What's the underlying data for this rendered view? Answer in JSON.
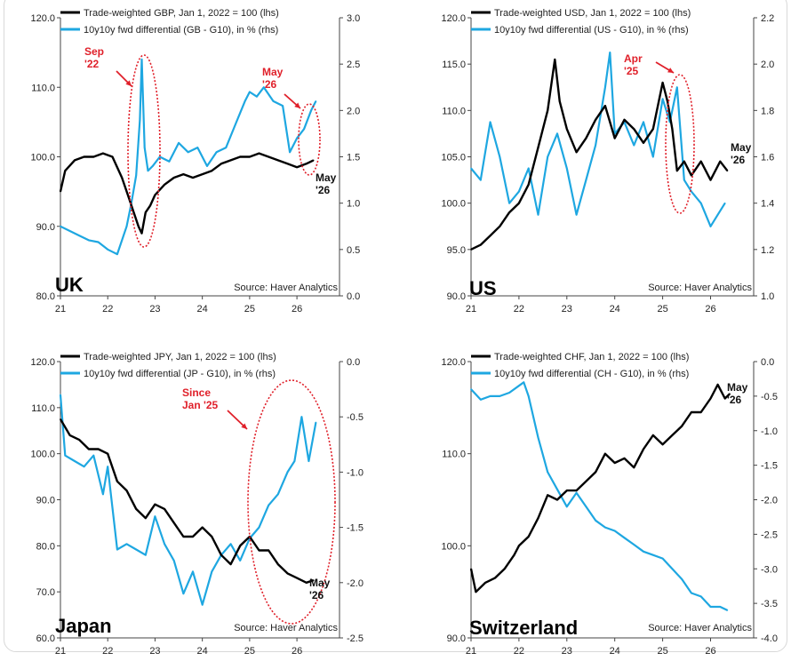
{
  "colors": {
    "lhs_series": "#000000",
    "rhs_series": "#1ea7e1",
    "annotation": "#e0202a"
  },
  "chart_data": [
    {
      "type": "line",
      "panel_label": "UK",
      "source": "Source: Haver Analytics",
      "x_ticks": [
        "21",
        "22",
        "23",
        "24",
        "25",
        "26"
      ],
      "y_left_ticks": [
        "80.0",
        "90.0",
        "100.0",
        "110.0",
        "120.0"
      ],
      "y_right_ticks": [
        "0.0",
        "0.5",
        "1.0",
        "1.5",
        "2.0",
        "2.5",
        "3.0"
      ],
      "ylim_left": [
        80,
        120
      ],
      "ylim_right": [
        0,
        3
      ],
      "series": [
        {
          "name": "Trade-weighted GBP, Jan 1, 2022 = 100 (lhs)",
          "axis": "left",
          "x": [
            2021.0,
            2021.1,
            2021.3,
            2021.5,
            2021.7,
            2021.9,
            2022.1,
            2022.3,
            2022.45,
            2022.55,
            2022.65,
            2022.72,
            2022.8,
            2022.9,
            2023.0,
            2023.2,
            2023.4,
            2023.6,
            2023.8,
            2024.0,
            2024.2,
            2024.4,
            2024.6,
            2024.8,
            2025.0,
            2025.2,
            2025.4,
            2025.6,
            2025.8,
            2026.0,
            2026.2,
            2026.35
          ],
          "values": [
            95,
            98,
            99.5,
            100,
            100,
            100.5,
            100,
            97,
            94,
            92,
            90,
            89,
            92,
            93,
            94.5,
            96,
            97,
            97.5,
            97,
            97.5,
            98,
            99,
            99.5,
            100,
            100,
            100.5,
            100,
            99.5,
            99,
            98.5,
            99,
            99.5
          ]
        },
        {
          "name": "10y10y fwd differential (GB - G10), in % (rhs)",
          "axis": "right",
          "x": [
            2021.0,
            2021.2,
            2021.4,
            2021.6,
            2021.8,
            2022.0,
            2022.2,
            2022.4,
            2022.5,
            2022.6,
            2022.68,
            2022.72,
            2022.78,
            2022.85,
            2022.95,
            2023.1,
            2023.3,
            2023.5,
            2023.7,
            2023.9,
            2024.1,
            2024.3,
            2024.5,
            2024.7,
            2024.9,
            2025.0,
            2025.15,
            2025.3,
            2025.5,
            2025.7,
            2025.85,
            2026.0,
            2026.15,
            2026.3,
            2026.4
          ],
          "values": [
            0.75,
            0.7,
            0.65,
            0.6,
            0.58,
            0.5,
            0.45,
            0.75,
            1.0,
            1.3,
            1.9,
            2.55,
            1.6,
            1.35,
            1.4,
            1.5,
            1.45,
            1.65,
            1.55,
            1.6,
            1.4,
            1.55,
            1.6,
            1.85,
            2.1,
            2.2,
            2.15,
            2.25,
            2.1,
            2.05,
            1.55,
            1.7,
            1.8,
            2.0,
            2.1
          ]
        }
      ],
      "annotations": [
        {
          "text": "Sep '22",
          "lines": [
            "Sep",
            "'22"
          ]
        },
        {
          "text": "May '26",
          "lines": [
            "May",
            "'26"
          ]
        },
        {
          "text": "May '26",
          "lines": [
            "May",
            "'26"
          ]
        }
      ]
    },
    {
      "type": "line",
      "panel_label": "US",
      "source": "Source: Haver Analytics",
      "x_ticks": [
        "21",
        "22",
        "23",
        "24",
        "25",
        "26"
      ],
      "y_left_ticks": [
        "90.0",
        "95.0",
        "100.0",
        "105.0",
        "110.0",
        "115.0",
        "120.0"
      ],
      "y_right_ticks": [
        "1.0",
        "1.2",
        "1.4",
        "1.6",
        "1.8",
        "2.0",
        "2.2"
      ],
      "ylim_left": [
        90,
        120
      ],
      "ylim_right": [
        1.0,
        2.2
      ],
      "series": [
        {
          "name": "Trade-weighted USD, Jan 1, 2022 = 100 (lhs)",
          "axis": "left",
          "x": [
            2021.0,
            2021.2,
            2021.4,
            2021.6,
            2021.8,
            2022.0,
            2022.2,
            2022.4,
            2022.6,
            2022.75,
            2022.85,
            2023.0,
            2023.2,
            2023.4,
            2023.6,
            2023.8,
            2024.0,
            2024.2,
            2024.4,
            2024.6,
            2024.8,
            2025.0,
            2025.1,
            2025.2,
            2025.3,
            2025.45,
            2025.6,
            2025.8,
            2026.0,
            2026.2,
            2026.35
          ],
          "values": [
            95,
            95.5,
            96.5,
            97.5,
            99,
            100,
            102,
            106,
            110,
            115.5,
            111,
            108,
            105.5,
            107,
            109,
            110.5,
            107,
            109,
            108,
            106.5,
            108,
            113,
            111,
            108,
            103.5,
            104.5,
            103,
            104.5,
            102.5,
            104.5,
            103.5
          ]
        },
        {
          "name": "10y10y fwd differential (US - G10), in % (rhs)",
          "axis": "right",
          "x": [
            2021.0,
            2021.2,
            2021.4,
            2021.6,
            2021.8,
            2022.0,
            2022.2,
            2022.4,
            2022.6,
            2022.8,
            2023.0,
            2023.2,
            2023.4,
            2023.6,
            2023.8,
            2023.9,
            2024.0,
            2024.2,
            2024.4,
            2024.6,
            2024.8,
            2025.0,
            2025.15,
            2025.3,
            2025.45,
            2025.6,
            2025.8,
            2026.0,
            2026.15,
            2026.3
          ],
          "values": [
            1.55,
            1.5,
            1.75,
            1.6,
            1.4,
            1.45,
            1.55,
            1.35,
            1.6,
            1.7,
            1.55,
            1.35,
            1.5,
            1.65,
            1.9,
            2.05,
            1.7,
            1.75,
            1.65,
            1.75,
            1.6,
            1.85,
            1.75,
            1.9,
            1.5,
            1.45,
            1.4,
            1.3,
            1.35,
            1.4
          ]
        }
      ],
      "annotations": [
        {
          "text": "Apr '25",
          "lines": [
            "Apr",
            "'25"
          ]
        },
        {
          "text": "May '26",
          "lines": [
            "May",
            "'26"
          ]
        }
      ]
    },
    {
      "type": "line",
      "panel_label": "Japan",
      "source": "Source: Haver Analytics",
      "x_ticks": [
        "21",
        "22",
        "23",
        "24",
        "25",
        "26"
      ],
      "y_left_ticks": [
        "60.0",
        "70.0",
        "80.0",
        "90.0",
        "100.0",
        "110.0",
        "120.0"
      ],
      "y_right_ticks": [
        "0.0",
        "-0.5",
        "-1.0",
        "-1.5",
        "-2.0",
        "-2.5"
      ],
      "ylim_left": [
        60,
        120
      ],
      "ylim_right": [
        -2.5,
        0
      ],
      "series": [
        {
          "name": "Trade-weighted JPY, Jan 1, 2022 = 100 (lhs)",
          "axis": "left",
          "x": [
            2021.0,
            2021.2,
            2021.4,
            2021.6,
            2021.8,
            2022.0,
            2022.2,
            2022.4,
            2022.6,
            2022.8,
            2023.0,
            2023.2,
            2023.4,
            2023.6,
            2023.8,
            2024.0,
            2024.2,
            2024.4,
            2024.6,
            2024.8,
            2025.0,
            2025.2,
            2025.4,
            2025.6,
            2025.8,
            2026.0,
            2026.2,
            2026.35
          ],
          "values": [
            107.5,
            104,
            103,
            101,
            101,
            100,
            94,
            92,
            88,
            86,
            89,
            88,
            85,
            82,
            82,
            84,
            82,
            78,
            76,
            80,
            82,
            79,
            79,
            76,
            74,
            73,
            72,
            72.5
          ]
        },
        {
          "name": "10y10y fwd differential (JP - G10), in % (rhs)",
          "axis": "right",
          "x": [
            2021.0,
            2021.1,
            2021.3,
            2021.5,
            2021.7,
            2021.9,
            2022.0,
            2022.2,
            2022.4,
            2022.6,
            2022.8,
            2023.0,
            2023.2,
            2023.4,
            2023.6,
            2023.8,
            2024.0,
            2024.2,
            2024.4,
            2024.6,
            2024.8,
            2025.0,
            2025.2,
            2025.4,
            2025.6,
            2025.8,
            2025.95,
            2026.1,
            2026.25,
            2026.4
          ],
          "values": [
            -0.3,
            -0.85,
            -0.9,
            -0.95,
            -0.85,
            -1.2,
            -0.95,
            -1.7,
            -1.65,
            -1.7,
            -1.75,
            -1.4,
            -1.65,
            -1.8,
            -2.1,
            -1.9,
            -2.2,
            -1.9,
            -1.75,
            -1.65,
            -1.8,
            -1.6,
            -1.5,
            -1.3,
            -1.2,
            -1.0,
            -0.9,
            -0.5,
            -0.9,
            -0.55
          ]
        }
      ],
      "annotations": [
        {
          "text": "Since Jan '25",
          "lines": [
            "Since",
            "Jan '25"
          ]
        },
        {
          "text": "May '26",
          "lines": [
            "May",
            "'26"
          ]
        }
      ]
    },
    {
      "type": "line",
      "panel_label": "Switzerland",
      "source": "Source: Haver Analytics",
      "x_ticks": [
        "21",
        "22",
        "23",
        "24",
        "25",
        "26"
      ],
      "y_left_ticks": [
        "90.0",
        "100.0",
        "110.0",
        "120.0"
      ],
      "y_right_ticks": [
        "0.0",
        "-0.5",
        "-1.0",
        "-1.5",
        "-2.0",
        "-2.5",
        "-3.0",
        "-3.5",
        "-4.0"
      ],
      "ylim_left": [
        90,
        120
      ],
      "ylim_right": [
        -4,
        0
      ],
      "series": [
        {
          "name": "Trade-weighted CHF, Jan 1, 2022 = 100 (lhs)",
          "axis": "left",
          "x": [
            2021.0,
            2021.1,
            2021.3,
            2021.5,
            2021.7,
            2021.9,
            2022.0,
            2022.2,
            2022.4,
            2022.6,
            2022.8,
            2023.0,
            2023.2,
            2023.4,
            2023.6,
            2023.8,
            2024.0,
            2024.2,
            2024.4,
            2024.6,
            2024.8,
            2025.0,
            2025.2,
            2025.4,
            2025.6,
            2025.8,
            2026.0,
            2026.15,
            2026.3,
            2026.4
          ],
          "values": [
            97.5,
            95,
            96,
            96.5,
            97.5,
            99,
            100,
            101,
            103,
            105.5,
            105,
            106,
            106,
            107,
            108,
            110,
            109,
            109.5,
            108.5,
            110.5,
            112,
            111,
            112,
            113,
            114.5,
            114.5,
            116,
            117.5,
            116,
            116.5
          ]
        },
        {
          "name": "10y10y fwd differential (CH - G10), in % (rhs)",
          "axis": "right",
          "x": [
            2021.0,
            2021.2,
            2021.4,
            2021.6,
            2021.8,
            2022.0,
            2022.1,
            2022.2,
            2022.4,
            2022.6,
            2022.8,
            2023.0,
            2023.2,
            2023.4,
            2023.6,
            2023.8,
            2024.0,
            2024.2,
            2024.4,
            2024.6,
            2024.8,
            2025.0,
            2025.2,
            2025.4,
            2025.6,
            2025.8,
            2026.0,
            2026.2,
            2026.35
          ],
          "values": [
            -0.4,
            -0.55,
            -0.5,
            -0.5,
            -0.45,
            -0.35,
            -0.3,
            -0.5,
            -1.1,
            -1.6,
            -1.85,
            -2.1,
            -1.9,
            -2.1,
            -2.3,
            -2.4,
            -2.45,
            -2.55,
            -2.65,
            -2.75,
            -2.8,
            -2.85,
            -3.0,
            -3.15,
            -3.35,
            -3.4,
            -3.55,
            -3.55,
            -3.6
          ]
        }
      ],
      "annotations": [
        {
          "text": "May '26",
          "lines": [
            "May",
            "'26"
          ]
        }
      ]
    }
  ]
}
